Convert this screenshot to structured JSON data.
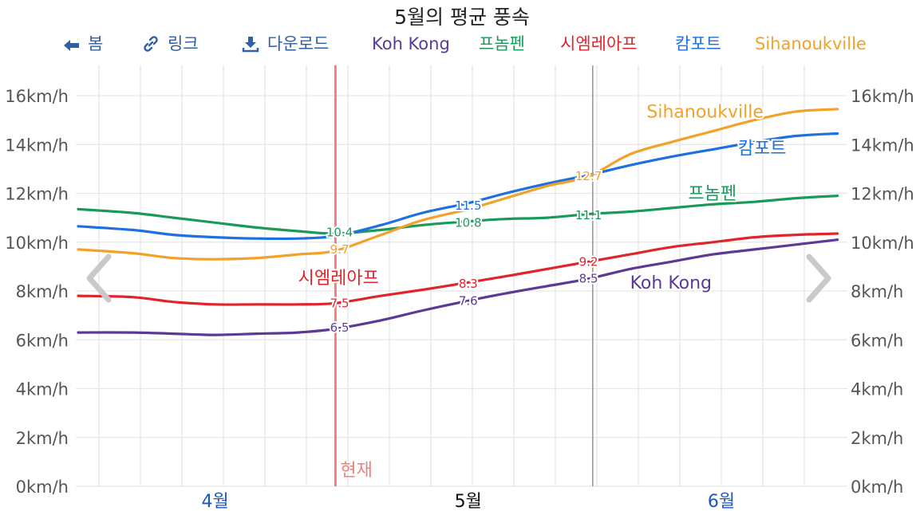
{
  "title": "5월의 평균 풍속",
  "toolbar": {
    "back": {
      "label": "봄",
      "icon": "arrow-left-icon"
    },
    "link": {
      "label": "링크",
      "icon": "link-icon"
    },
    "download": {
      "label": "다운로드",
      "icon": "download-icon"
    },
    "legend": [
      {
        "label": "Koh Kong",
        "color": "#5b3a96"
      },
      {
        "label": "프놈펜",
        "color": "#1a9a5a"
      },
      {
        "label": "시엠레아프",
        "color": "#e0242b"
      },
      {
        "label": "캄포트",
        "color": "#1e6fe0"
      },
      {
        "label": "Sihanoukville",
        "color": "#f2a229"
      }
    ]
  },
  "nav": {
    "prev_icon": "chevron-left-icon",
    "next_icon": "chevron-right-icon"
  },
  "chart_data": {
    "type": "line",
    "title": "5월의 평균 풍속",
    "x_unit": "day index (0 = 4월 1일)",
    "xlim": [
      -1.5,
      91
    ],
    "ylim": [
      0,
      16
    ],
    "y_ticks": [
      "0km/h",
      "2km/h",
      "4km/h",
      "6km/h",
      "8km/h",
      "10km/h",
      "12km/h",
      "14km/h",
      "16km/h"
    ],
    "x_tick_labels": [
      {
        "label": "4월",
        "x": 15,
        "color": "#1a56c4"
      },
      {
        "label": "5월",
        "x": 45.5,
        "color": "#111111"
      },
      {
        "label": "6월",
        "x": 76,
        "color": "#1a56c4"
      }
    ],
    "now_marker": {
      "label": "현재",
      "x": 29.5,
      "color": "#f08080"
    },
    "month_divider_x": 60.5,
    "grid": true,
    "series": [
      {
        "name": "Koh Kong",
        "color": "#5b3a96",
        "label": "Koh Kong",
        "label_x": 65,
        "label_y": 8.1,
        "data_labels": [
          {
            "x": 30,
            "y": 6.5,
            "text": "6.5"
          },
          {
            "x": 45.5,
            "y": 7.6,
            "text": "7.6"
          },
          {
            "x": 60,
            "y": 8.5,
            "text": "8.5"
          }
        ],
        "points": [
          [
            -1.5,
            6.3
          ],
          [
            5,
            6.3
          ],
          [
            10,
            6.25
          ],
          [
            15,
            6.2
          ],
          [
            20,
            6.25
          ],
          [
            25,
            6.3
          ],
          [
            29.5,
            6.45
          ],
          [
            35,
            6.8
          ],
          [
            40,
            7.2
          ],
          [
            45.5,
            7.6
          ],
          [
            50,
            7.9
          ],
          [
            55,
            8.2
          ],
          [
            60,
            8.5
          ],
          [
            65,
            8.9
          ],
          [
            70,
            9.2
          ],
          [
            75,
            9.5
          ],
          [
            80,
            9.7
          ],
          [
            85,
            9.9
          ],
          [
            90,
            10.1
          ]
        ]
      },
      {
        "name": "프놈펜",
        "color": "#1a9a5a",
        "label": "프놈펜",
        "label_x": 72,
        "label_y": 11.75,
        "data_labels": [
          {
            "x": 30,
            "y": 10.4,
            "text": "10.4"
          },
          {
            "x": 45.5,
            "y": 10.8,
            "text": "10.8"
          },
          {
            "x": 60,
            "y": 11.1,
            "text": "11.1"
          }
        ],
        "points": [
          [
            -1.5,
            11.35
          ],
          [
            5,
            11.2
          ],
          [
            10,
            11.0
          ],
          [
            15,
            10.8
          ],
          [
            20,
            10.6
          ],
          [
            25,
            10.45
          ],
          [
            29.5,
            10.35
          ],
          [
            35,
            10.5
          ],
          [
            40,
            10.7
          ],
          [
            45.5,
            10.85
          ],
          [
            50,
            10.95
          ],
          [
            55,
            11.0
          ],
          [
            60,
            11.15
          ],
          [
            65,
            11.25
          ],
          [
            70,
            11.4
          ],
          [
            75,
            11.55
          ],
          [
            80,
            11.65
          ],
          [
            85,
            11.8
          ],
          [
            90,
            11.9
          ]
        ]
      },
      {
        "name": "시엠레아프",
        "color": "#e0242b",
        "label": "시엠레아프",
        "label_x": 25,
        "label_y": 8.3,
        "data_labels": [
          {
            "x": 30,
            "y": 7.5,
            "text": "7.5"
          },
          {
            "x": 45.5,
            "y": 8.3,
            "text": "8.3"
          },
          {
            "x": 60,
            "y": 9.2,
            "text": "9.2"
          }
        ],
        "points": [
          [
            -1.5,
            7.8
          ],
          [
            5,
            7.75
          ],
          [
            10,
            7.55
          ],
          [
            15,
            7.45
          ],
          [
            20,
            7.45
          ],
          [
            25,
            7.45
          ],
          [
            29.5,
            7.5
          ],
          [
            35,
            7.8
          ],
          [
            40,
            8.05
          ],
          [
            45.5,
            8.35
          ],
          [
            50,
            8.6
          ],
          [
            55,
            8.9
          ],
          [
            60,
            9.2
          ],
          [
            65,
            9.5
          ],
          [
            70,
            9.8
          ],
          [
            75,
            10.0
          ],
          [
            80,
            10.2
          ],
          [
            85,
            10.3
          ],
          [
            90,
            10.35
          ]
        ]
      },
      {
        "name": "캄포트",
        "color": "#1e6fe0",
        "label": "캄포트",
        "label_x": 78,
        "label_y": 13.6,
        "data_labels": [
          {
            "x": 45.5,
            "y": 11.5,
            "text": "11.5"
          },
          {
            "x": 60,
            "y": 12.7,
            "text": "12.7"
          }
        ],
        "points": [
          [
            -1.5,
            10.65
          ],
          [
            5,
            10.5
          ],
          [
            10,
            10.3
          ],
          [
            15,
            10.2
          ],
          [
            20,
            10.15
          ],
          [
            25,
            10.15
          ],
          [
            29.5,
            10.25
          ],
          [
            35,
            10.7
          ],
          [
            40,
            11.2
          ],
          [
            45.5,
            11.6
          ],
          [
            50,
            12.0
          ],
          [
            55,
            12.4
          ],
          [
            60,
            12.75
          ],
          [
            65,
            13.15
          ],
          [
            70,
            13.5
          ],
          [
            75,
            13.8
          ],
          [
            80,
            14.1
          ],
          [
            85,
            14.35
          ],
          [
            90,
            14.45
          ]
        ]
      },
      {
        "name": "Sihanoukville",
        "color": "#f2a229",
        "label": "Sihanoukville",
        "label_x": 67,
        "label_y": 15.1,
        "data_labels": [
          {
            "x": 30,
            "y": 9.7,
            "text": "9.7"
          },
          {
            "x": 60,
            "y": 12.7,
            "text": "12.7"
          }
        ],
        "points": [
          [
            -1.5,
            9.7
          ],
          [
            5,
            9.55
          ],
          [
            10,
            9.35
          ],
          [
            15,
            9.3
          ],
          [
            20,
            9.35
          ],
          [
            25,
            9.5
          ],
          [
            29.5,
            9.65
          ],
          [
            35,
            10.3
          ],
          [
            40,
            10.9
          ],
          [
            45.5,
            11.35
          ],
          [
            50,
            11.8
          ],
          [
            55,
            12.3
          ],
          [
            60,
            12.7
          ],
          [
            65,
            13.6
          ],
          [
            70,
            14.1
          ],
          [
            75,
            14.55
          ],
          [
            80,
            15.0
          ],
          [
            85,
            15.35
          ],
          [
            90,
            15.45
          ]
        ]
      }
    ]
  }
}
